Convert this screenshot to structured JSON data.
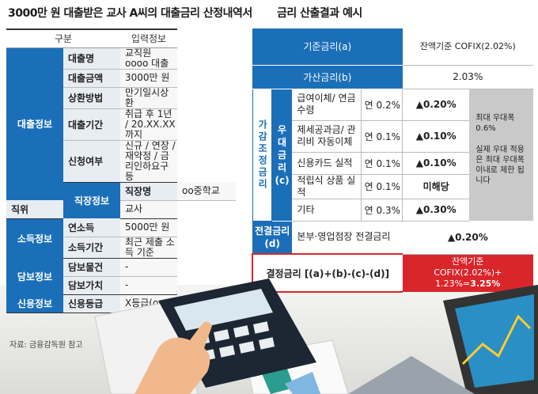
{
  "left_title": "3000만 원 대출받은 교사 A씨의 대출금리 산정내역서",
  "right_title": "금리 산출결과 예시",
  "left_table": {
    "headers": [
      "구분",
      "입력정보"
    ],
    "groups": [
      {
        "category": "대출정보",
        "rows": [
          {
            "label": "대출명",
            "value": "교직원 oooo 대출"
          },
          {
            "label": "대출금액",
            "value": "3000만 원"
          },
          {
            "label": "상환방법",
            "value": "만기일시상환"
          },
          {
            "label": "대출기간",
            "value": "취급 후 1년 / 20.XX.XX까지"
          },
          {
            "label": "신청여부",
            "value": "신규 / 연장 / 재약정 / 금리인하요구 등"
          }
        ]
      },
      {
        "category": "직장정보",
        "rows": [
          {
            "label": "직장명",
            "value": "oo중학교"
          },
          {
            "label": "직위",
            "value": "교사"
          }
        ]
      },
      {
        "category": "소득정보",
        "rows": [
          {
            "label": "연소득",
            "value": "5000만 원"
          },
          {
            "label": "소득기간",
            "value": "최근 제출 소득 기준"
          }
        ]
      },
      {
        "category": "담보정보",
        "rows": [
          {
            "label": "담보물건",
            "value": "-"
          },
          {
            "label": "담보가치",
            "value": "-"
          }
        ]
      },
      {
        "category": "신용정보",
        "rows": [
          {
            "label": "신용등급",
            "value": "X등급(oo사)"
          }
        ]
      }
    ]
  },
  "source": "자료: 금융감독원 참고",
  "right_table": {
    "base_label": "기준금리(a)",
    "base_value": "잔액기준 COFIX(2.02%)",
    "add_label": "가산금리(b)",
    "add_value": "2.03%",
    "adjust_label": "가감조정금리",
    "pref_label": "우대금리 (c)",
    "pref_rows": [
      {
        "item": "급여이체/ 연금수령",
        "rate": "연 0.2%",
        "change": "▲0.20%"
      },
      {
        "item": "제세공과금/ 관리비 자동이체",
        "rate": "연 0.1%",
        "change": "▲0.10%"
      },
      {
        "item": "신용카드 실적",
        "rate": "연 0.1%",
        "change": "▲0.10%"
      },
      {
        "item": "적립식 상품 실적",
        "rate": "연 0.1%",
        "change": "미해당"
      },
      {
        "item": "기타",
        "rate": "연 0.3%",
        "change": "▲0.30%"
      }
    ],
    "note1": "최대 우대폭 0.6%",
    "note2": "실제 우대 적용은 최대 우대폭 이내로 제한 됩니다",
    "pre_label": "전결금리(d)",
    "pre_item": "본부·영업점장 전결금리",
    "pre_change": "▲0.20%",
    "final_label": "결정금리 [(a)+(b)-(c)-(d)]",
    "final_line1": "잔액기준",
    "final_line2": "COFIX(2.02%)+",
    "final_line3": "1.23%=",
    "final_result": "3.25%"
  }
}
